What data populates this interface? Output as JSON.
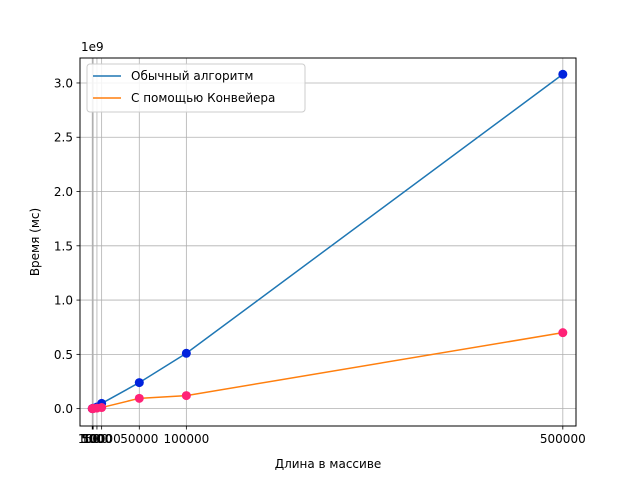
{
  "chart_data": {
    "type": "line",
    "title": "",
    "xlabel": "Длина в массиве",
    "ylabel": "Время (мс)",
    "y_offset_label": "1e9",
    "y_multiplier": 1000000000,
    "xlim": [
      -13000,
      514000
    ],
    "ylim": [
      -0.16,
      3.23
    ],
    "grid": true,
    "legend_position": "top-left",
    "x_ticks": [
      {
        "value": 50,
        "label": "50"
      },
      {
        "value": 100,
        "label": "100"
      },
      {
        "value": 500,
        "label": "500"
      },
      {
        "value": 1000,
        "label": "1000"
      },
      {
        "value": 5000,
        "label": "5000"
      },
      {
        "value": 10000,
        "label": "10000"
      },
      {
        "value": 50000,
        "label": "50000"
      },
      {
        "value": 100000,
        "label": "100000"
      },
      {
        "value": 500000,
        "label": "500000"
      }
    ],
    "y_ticks": [
      {
        "value": 0.0,
        "label": "0.0"
      },
      {
        "value": 0.5,
        "label": "0.5"
      },
      {
        "value": 1.0,
        "label": "1.0"
      },
      {
        "value": 1.5,
        "label": "1.5"
      },
      {
        "value": 2.0,
        "label": "2.0"
      },
      {
        "value": 2.5,
        "label": "2.5"
      },
      {
        "value": 3.0,
        "label": "3.0"
      }
    ],
    "x": [
      50,
      100,
      500,
      1000,
      5000,
      10000,
      50000,
      100000,
      500000
    ],
    "series": [
      {
        "name": "Обычный алгоритм",
        "line_color": "#1f77b4",
        "marker_color": "#0022dd",
        "values": [
          0.0003,
          0.0005,
          0.0015,
          0.003,
          0.015,
          0.048,
          0.24,
          0.51,
          3.08
        ]
      },
      {
        "name": "С помощью Конвейера",
        "line_color": "#ff7f0e",
        "marker_color": "#ff2277",
        "values": [
          0.0001,
          0.0002,
          0.0005,
          0.001,
          0.005,
          0.01,
          0.095,
          0.12,
          0.7
        ]
      }
    ]
  }
}
